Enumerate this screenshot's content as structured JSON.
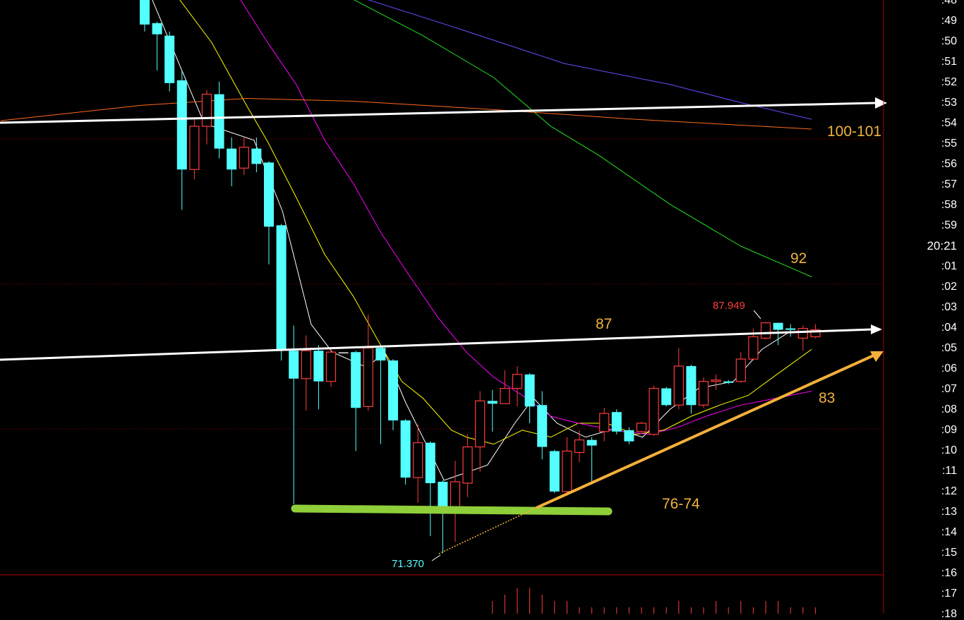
{
  "chart_data": {
    "type": "candlestick",
    "colors": {
      "up": "#ff3b3b",
      "down": "#54ffff",
      "doji": "#bbbbbb",
      "background": "#000000",
      "frame": "#b00000"
    },
    "axis_labels": [
      ":48",
      ":49",
      ":50",
      ":51",
      ":52",
      ":53",
      ":54",
      ":55",
      ":56",
      ":57",
      ":58",
      ":59",
      "20:21",
      ":01",
      ":02",
      ":03",
      ":04",
      ":05",
      ":06",
      ":07",
      ":08",
      ":09",
      ":10",
      ":11",
      ":12",
      ":13",
      ":14",
      ":15",
      ":16",
      ":17",
      ":18"
    ],
    "candles": [
      [
        111.1,
        111.3,
        108.8,
        109.3
      ],
      [
        109.4,
        109.5,
        106.0,
        108.6
      ],
      [
        108.5,
        108.8,
        104.5,
        105.1
      ],
      [
        105.3,
        106.0,
        96.0,
        98.9
      ],
      [
        98.9,
        102.5,
        98.2,
        102.0
      ],
      [
        102.0,
        104.6,
        100.7,
        104.3
      ],
      [
        104.3,
        105.2,
        99.7,
        100.4
      ],
      [
        100.4,
        101.2,
        97.7,
        98.9
      ],
      [
        99.0,
        101.2,
        98.5,
        100.5
      ],
      [
        100.4,
        101.2,
        98.7,
        99.3
      ],
      [
        99.4,
        99.5,
        92.1,
        94.8
      ],
      [
        94.9,
        95.0,
        85.2,
        86.0
      ],
      [
        85.9,
        87.7,
        74.9,
        83.9
      ],
      [
        83.9,
        87.0,
        81.6,
        85.9
      ],
      [
        85.9,
        86.3,
        81.7,
        83.7
      ],
      [
        83.7,
        86.0,
        83.3,
        85.8
      ],
      [
        85.8,
        85.8,
        85.8,
        85.8
      ],
      [
        85.8,
        85.9,
        78.7,
        81.8
      ],
      [
        81.9,
        88.5,
        81.6,
        86.1
      ],
      [
        86.1,
        86.3,
        79.2,
        85.2
      ],
      [
        85.2,
        85.3,
        80.2,
        80.9
      ],
      [
        80.9,
        81.0,
        76.3,
        76.8
      ],
      [
        76.8,
        80.6,
        75.0,
        79.3
      ],
      [
        79.3,
        79.4,
        72.6,
        76.4
      ],
      [
        76.5,
        76.6,
        71.37,
        74.4
      ],
      [
        74.4,
        78.0,
        72.2,
        76.5
      ],
      [
        76.4,
        79.9,
        75.4,
        79.0
      ],
      [
        79.0,
        83.0,
        77.2,
        82.3
      ],
      [
        82.3,
        83.1,
        80.1,
        82.1
      ],
      [
        82.1,
        84.5,
        82.1,
        83.2
      ],
      [
        83.2,
        84.8,
        81.9,
        84.2
      ],
      [
        84.2,
        84.3,
        80.7,
        81.9
      ],
      [
        82.0,
        83.0,
        78.1,
        79.0
      ],
      [
        78.7,
        78.8,
        75.7,
        75.8
      ],
      [
        75.8,
        79.7,
        75.5,
        78.7
      ],
      [
        78.6,
        80.2,
        77.9,
        79.5
      ],
      [
        79.5,
        79.7,
        76.3,
        79.1
      ],
      [
        80.1,
        81.8,
        79.4,
        81.4
      ],
      [
        81.5,
        81.7,
        79.9,
        80.1
      ],
      [
        80.2,
        80.4,
        79.2,
        79.4
      ],
      [
        80.1,
        80.8,
        80.0,
        80.7
      ],
      [
        79.9,
        83.4,
        79.8,
        83.2
      ],
      [
        83.2,
        83.3,
        81.9,
        82.0
      ],
      [
        82.0,
        86.1,
        81.7,
        84.8
      ],
      [
        84.8,
        84.9,
        81.4,
        82.0
      ],
      [
        82.0,
        84.0,
        81.8,
        83.7
      ],
      [
        83.7,
        84.2,
        83.1,
        83.8
      ],
      [
        83.7,
        83.8,
        83.5,
        83.6
      ],
      [
        83.7,
        85.8,
        83.6,
        85.3
      ],
      [
        85.3,
        87.5,
        85.2,
        86.9
      ],
      [
        86.8,
        87.949,
        86.7,
        87.9
      ],
      [
        87.9,
        87.9,
        86.3,
        87.4
      ],
      [
        87.5,
        87.8,
        86.9,
        87.4
      ],
      [
        86.8,
        87.7,
        85.9,
        87.5
      ],
      [
        86.9,
        87.8,
        86.8,
        87.4
      ]
    ],
    "candle_format": [
      "open",
      "high",
      "low",
      "close"
    ],
    "moving_averages": [
      {
        "color": "#ffffff",
        "points": [
          [
            0.6,
            111.1
          ],
          [
            3.0,
            106.0
          ],
          [
            4.8,
            102.2
          ],
          [
            8.8,
            101.0
          ],
          [
            11.1,
            95.9
          ],
          [
            13.4,
            87.8
          ],
          [
            15.1,
            85.8
          ],
          [
            17.9,
            84.7
          ],
          [
            19.3,
            85.8
          ],
          [
            21.0,
            82.2
          ],
          [
            23.0,
            78.6
          ],
          [
            24.1,
            76.6
          ],
          [
            27.6,
            77.7
          ],
          [
            29.8,
            80.7
          ],
          [
            31.3,
            82.5
          ],
          [
            33.2,
            80.7
          ],
          [
            35.5,
            79.7
          ],
          [
            37.8,
            80.3
          ],
          [
            40.1,
            79.7
          ],
          [
            42.3,
            81.7
          ],
          [
            44.6,
            83.2
          ],
          [
            47.4,
            83.7
          ],
          [
            49.7,
            86.0
          ],
          [
            52.0,
            87.3
          ]
        ]
      },
      {
        "color": "#ffff00",
        "points": [
          [
            2.8,
            111.1
          ],
          [
            5.4,
            108.0
          ],
          [
            8.2,
            103.5
          ],
          [
            9.9,
            100.9
          ],
          [
            12.2,
            96.9
          ],
          [
            14.5,
            92.8
          ],
          [
            16.8,
            89.8
          ],
          [
            19.0,
            86.3
          ],
          [
            20.7,
            83.7
          ],
          [
            22.4,
            82.5
          ],
          [
            24.7,
            80.2
          ],
          [
            25.9,
            79.7
          ],
          [
            28.1,
            79.2
          ],
          [
            30.4,
            80.2
          ],
          [
            32.7,
            79.7
          ],
          [
            34.9,
            80.7
          ],
          [
            37.2,
            80.7
          ],
          [
            39.5,
            79.9
          ],
          [
            41.8,
            80.2
          ],
          [
            44.0,
            81.2
          ],
          [
            46.3,
            82.0
          ],
          [
            48.6,
            82.7
          ],
          [
            50.9,
            84.2
          ],
          [
            53.7,
            86.0
          ]
        ]
      },
      {
        "color": "#ff00ff",
        "points": [
          [
            7.7,
            111.1
          ],
          [
            9.9,
            108.0
          ],
          [
            12.2,
            105.0
          ],
          [
            14.5,
            101.0
          ],
          [
            16.8,
            97.9
          ],
          [
            19.0,
            94.4
          ],
          [
            21.3,
            91.3
          ],
          [
            23.6,
            88.3
          ],
          [
            25.9,
            85.8
          ],
          [
            28.1,
            84.0
          ],
          [
            30.4,
            82.7
          ],
          [
            32.7,
            81.2
          ],
          [
            34.9,
            80.7
          ],
          [
            37.8,
            80.2
          ],
          [
            40.6,
            79.9
          ],
          [
            42.9,
            80.4
          ],
          [
            45.2,
            81.2
          ],
          [
            48.0,
            82.0
          ],
          [
            50.9,
            82.5
          ],
          [
            53.7,
            83.0
          ]
        ]
      },
      {
        "color": "#22dd22",
        "points": [
          [
            16.8,
            111.1
          ],
          [
            22.4,
            108.5
          ],
          [
            28.1,
            105.5
          ],
          [
            32.7,
            102.0
          ],
          [
            36.6,
            99.9
          ],
          [
            42.3,
            96.4
          ],
          [
            48.0,
            93.4
          ],
          [
            53.7,
            91.2
          ]
        ]
      },
      {
        "color": "#6a4cff",
        "points": [
          [
            17.9,
            111.1
          ],
          [
            25.3,
            109.0
          ],
          [
            33.8,
            106.5
          ],
          [
            42.3,
            105.0
          ],
          [
            48.0,
            103.7
          ],
          [
            53.7,
            102.5
          ]
        ]
      },
      {
        "color": "#ff6a1a",
        "points": [
          [
            -11.6,
            102.4
          ],
          [
            -0.3,
            103.5
          ],
          [
            8.2,
            104.0
          ],
          [
            16.8,
            103.8
          ],
          [
            28.1,
            103.2
          ],
          [
            39.5,
            102.5
          ],
          [
            53.7,
            101.8
          ]
        ]
      }
    ],
    "reference_lines": [
      101.1,
      90.7,
      80.3
    ],
    "volume": [
      {
        "i": 28,
        "v": 2
      },
      {
        "i": 29,
        "v": 3
      },
      {
        "i": 30,
        "v": 4
      },
      {
        "i": 31,
        "v": 4
      },
      {
        "i": 32,
        "v": 3
      },
      {
        "i": 33,
        "v": 2
      },
      {
        "i": 34,
        "v": 2
      },
      {
        "i": 35,
        "v": 1
      },
      {
        "i": 36,
        "v": 1
      },
      {
        "i": 37,
        "v": 1
      },
      {
        "i": 38,
        "v": 1
      },
      {
        "i": 39,
        "v": 1
      },
      {
        "i": 40,
        "v": 1
      },
      {
        "i": 41,
        "v": 1
      },
      {
        "i": 42,
        "v": 1
      },
      {
        "i": 43,
        "v": 2
      },
      {
        "i": 44,
        "v": 1
      },
      {
        "i": 45,
        "v": 1
      },
      {
        "i": 46,
        "v": 2
      },
      {
        "i": 47,
        "v": 1
      },
      {
        "i": 48,
        "v": 2
      },
      {
        "i": 49,
        "v": 1
      },
      {
        "i": 50,
        "v": 2
      },
      {
        "i": 51,
        "v": 2
      },
      {
        "i": 52,
        "v": 1
      },
      {
        "i": 53,
        "v": 1
      },
      {
        "i": 54,
        "v": 1
      }
    ],
    "low_label": "71.370",
    "high_label": "87.949",
    "annotations": {
      "resistance_top": "100-101",
      "ma_level": "92",
      "resistance_mid": "87",
      "trend_support": "83",
      "support_zone": "76-74"
    }
  }
}
